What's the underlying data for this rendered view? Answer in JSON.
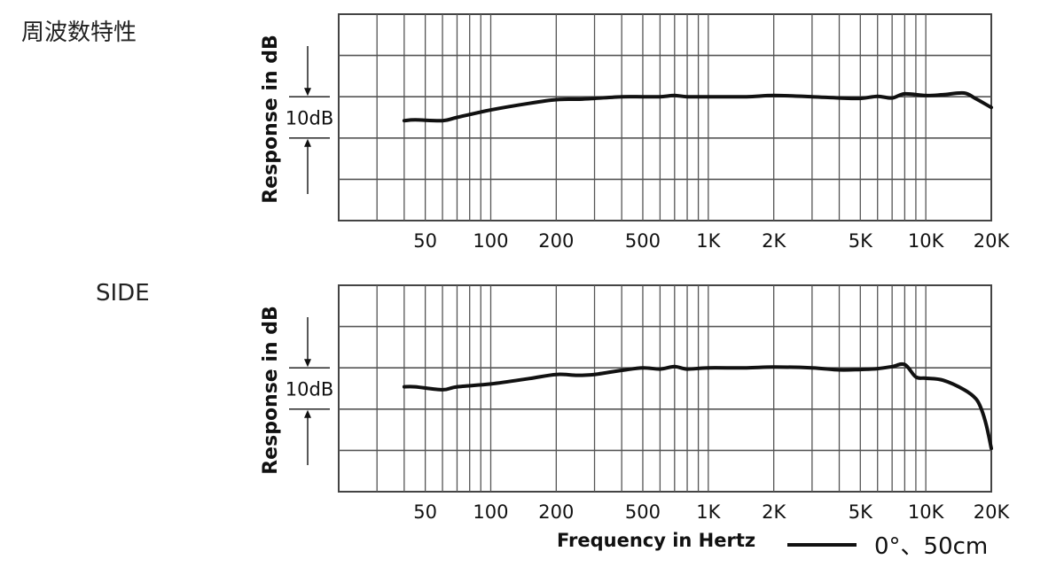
{
  "chart_data": [
    {
      "type": "line",
      "title": "周波数特性",
      "ylabel": "Response in dB",
      "xlabel": "",
      "x_scale": "log",
      "xlim": [
        20,
        20000
      ],
      "ylim": [
        -30,
        20
      ],
      "y_unit": "dB",
      "scale_label": "10dB",
      "grid": true,
      "x_ticks": [
        "50",
        "100",
        "200",
        "500",
        "1K",
        "2K",
        "5K",
        "10K",
        "20K"
      ],
      "series": [
        {
          "color": "#111111",
          "x": [
            40,
            45,
            60,
            70,
            100,
            150,
            200,
            250,
            300,
            400,
            500,
            600,
            700,
            800,
            1000,
            1500,
            2000,
            3000,
            4000,
            5000,
            6000,
            7000,
            8000,
            10000,
            12000,
            15000,
            17000,
            20000
          ],
          "y": [
            -5.8,
            -5.6,
            -5.8,
            -5,
            -3.2,
            -1.6,
            -0.7,
            -0.6,
            -0.4,
            0,
            0,
            0,
            0.3,
            0,
            0,
            0,
            0.3,
            0,
            -0.3,
            -0.4,
            0.1,
            -0.3,
            0.7,
            0.3,
            0.5,
            0.9,
            -0.5,
            -2.6
          ]
        }
      ]
    },
    {
      "type": "line",
      "title": "SIDE",
      "ylabel": "Response in dB",
      "xlabel": "Frequency in Hertz",
      "x_scale": "log",
      "xlim": [
        20,
        20000
      ],
      "ylim": [
        -30,
        20
      ],
      "y_unit": "dB",
      "scale_label": "10dB",
      "grid": true,
      "legend": "0°、50cm",
      "x_ticks": [
        "50",
        "100",
        "200",
        "500",
        "1K",
        "2K",
        "5K",
        "10K",
        "20K"
      ],
      "series": [
        {
          "name": "0°、50cm",
          "color": "#111111",
          "x": [
            40,
            45,
            60,
            70,
            100,
            150,
            200,
            250,
            300,
            400,
            500,
            600,
            700,
            800,
            1000,
            1500,
            2000,
            3000,
            4000,
            5000,
            6000,
            7000,
            8000,
            9000,
            10000,
            12000,
            15000,
            17000,
            18000,
            19000,
            20000
          ],
          "y": [
            -4.6,
            -4.6,
            -5.3,
            -4.6,
            -3.9,
            -2.6,
            -1.6,
            -1.8,
            -1.6,
            -0.6,
            0,
            -0.3,
            0.3,
            -0.3,
            0,
            0,
            0.2,
            0,
            -0.5,
            -0.4,
            -0.2,
            0.3,
            0.8,
            -2.2,
            -2.5,
            -3,
            -5.3,
            -7.5,
            -10,
            -14,
            -19.5
          ]
        }
      ]
    }
  ]
}
